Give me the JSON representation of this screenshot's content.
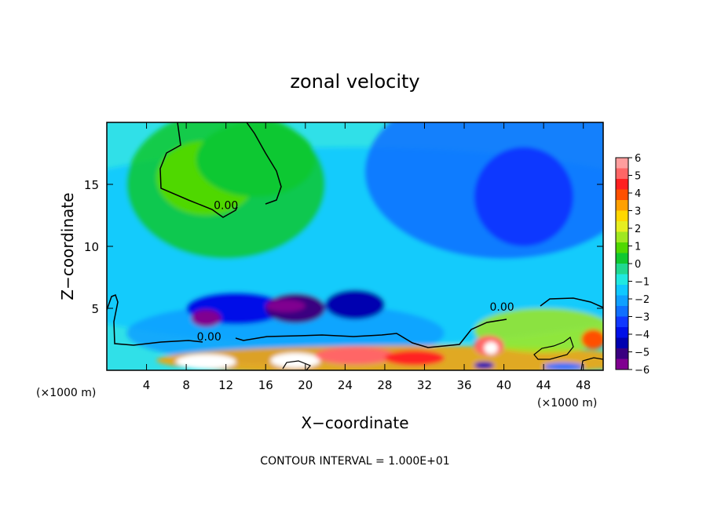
{
  "chart_data": {
    "type": "heatmap",
    "title": "zonal velocity",
    "xlabel": "X−coordinate",
    "ylabel": "Z−coordinate",
    "x_unit_left": "(×1000 m)",
    "x_unit_right": "(×1000 m)",
    "footer": "CONTOUR INTERVAL = 1.000E+01",
    "xlim": [
      0,
      50
    ],
    "ylim": [
      0,
      20
    ],
    "x_ticks": [
      {
        "value": 4,
        "label": "4"
      },
      {
        "value": 8,
        "label": "8"
      },
      {
        "value": 12,
        "label": "12"
      },
      {
        "value": 16,
        "label": "16"
      },
      {
        "value": 20,
        "label": "20"
      },
      {
        "value": 24,
        "label": "24"
      },
      {
        "value": 28,
        "label": "28"
      },
      {
        "value": 32,
        "label": "32"
      },
      {
        "value": 36,
        "label": "36"
      },
      {
        "value": 40,
        "label": "40"
      },
      {
        "value": 44,
        "label": "44"
      },
      {
        "value": 48,
        "label": "48"
      }
    ],
    "y_ticks": [
      {
        "value": 5,
        "label": "5"
      },
      {
        "value": 10,
        "label": "10"
      },
      {
        "value": 15,
        "label": "15"
      }
    ],
    "colorbar": {
      "min": -6.5,
      "max": 6.5,
      "labels": [
        "6",
        "5",
        "4",
        "3",
        "2",
        "1",
        "0",
        "−1",
        "−2",
        "−3",
        "−4",
        "−5",
        "−6"
      ],
      "colors": [
        "#ff9e9e",
        "#ff6666",
        "#ff2020",
        "#ff5000",
        "#ffa000",
        "#ffd700",
        "#e6ee20",
        "#a0e820",
        "#50d800",
        "#10c830",
        "#20d890",
        "#20e8e0",
        "#10c8ff",
        "#10a0ff",
        "#1070ff",
        "#1038ff",
        "#0010e8",
        "#0000b0",
        "#3a0080",
        "#800090"
      ]
    },
    "contour_labels": [
      {
        "x": 12.0,
        "z": 13.0,
        "text": "0.00"
      },
      {
        "x": 10.3,
        "z": 2.4,
        "text": "0.00"
      },
      {
        "x": 39.8,
        "z": 4.8,
        "text": "0.00"
      }
    ],
    "features": [
      {
        "x": 10,
        "z": 15.5,
        "value": 1.0,
        "sx": 5,
        "sz": 3
      },
      {
        "x": 15,
        "z": 17,
        "value": 0.6,
        "sx": 6,
        "sz": 3
      },
      {
        "x": 42,
        "z": 14,
        "value": -3.5,
        "sx": 5,
        "sz": 4
      },
      {
        "x": 13,
        "z": 5,
        "value": -4.0,
        "sx": 5,
        "sz": 1.3
      },
      {
        "x": 19,
        "z": 5,
        "value": -5.5,
        "sx": 3,
        "sz": 1.2
      },
      {
        "x": 25,
        "z": 5.3,
        "value": -5.0,
        "sx": 3,
        "sz": 1.2
      },
      {
        "x": 10,
        "z": 4.2,
        "value": -6.5,
        "sx": 1.5,
        "sz": 0.7
      },
      {
        "x": 18,
        "z": 5.2,
        "value": -6.5,
        "sx": 2,
        "sz": 0.5
      },
      {
        "x": 10,
        "z": 0.7,
        "value": 6.5,
        "sx": 3,
        "sz": 0.6
      },
      {
        "x": 19,
        "z": 0.8,
        "value": 6.5,
        "sx": 2.5,
        "sz": 0.6
      },
      {
        "x": 25,
        "z": 1.2,
        "value": 5.5,
        "sx": 4,
        "sz": 0.7
      },
      {
        "x": 31,
        "z": 1.0,
        "value": 5.0,
        "sx": 3,
        "sz": 0.6
      },
      {
        "x": 38.5,
        "z": 2.0,
        "value": 5.5,
        "sx": 1.5,
        "sz": 0.8
      },
      {
        "x": 38.7,
        "z": 1.8,
        "value": 6.5,
        "sx": 0.7,
        "sz": 0.5
      },
      {
        "x": 49,
        "z": 2.5,
        "value": 4.0,
        "sx": 1.2,
        "sz": 0.8
      },
      {
        "x": 46,
        "z": 0.3,
        "value": -3.0,
        "sx": 2,
        "sz": 0.3
      },
      {
        "x": 38,
        "z": 0.4,
        "value": -5.0,
        "sx": 1,
        "sz": 0.3
      }
    ]
  }
}
